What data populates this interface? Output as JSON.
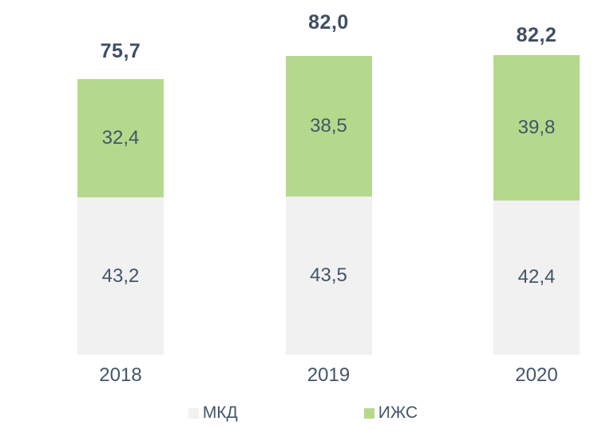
{
  "chart_data": {
    "type": "bar",
    "stacked": true,
    "title": "",
    "xlabel": "",
    "ylabel": "",
    "categories": [
      "2018",
      "2019",
      "2020"
    ],
    "series": [
      {
        "name": "МКД",
        "color": "#f1f1f1",
        "values": [
          43.2,
          43.5,
          42.4
        ],
        "labels": [
          "43,2",
          "43,5",
          "42,4"
        ]
      },
      {
        "name": "ИЖС",
        "color": "#b5d98c",
        "values": [
          32.4,
          38.5,
          39.8
        ],
        "labels": [
          "32,4",
          "38,5",
          "39,8"
        ]
      }
    ],
    "totals": [
      75.7,
      82.0,
      82.2
    ],
    "totals_labels": [
      "75,7",
      "82,0",
      "82,2"
    ],
    "legend_position": "bottom",
    "axes_visible": false,
    "gridlines": false,
    "background": "#ffffff",
    "text_color": "#44546a"
  }
}
